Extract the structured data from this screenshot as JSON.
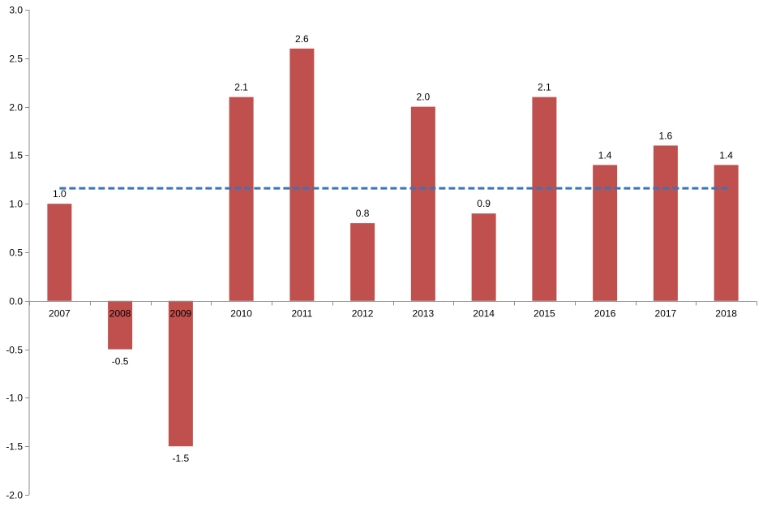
{
  "chart_data": {
    "type": "bar",
    "categories": [
      "2007",
      "2008",
      "2009",
      "2010",
      "2011",
      "2012",
      "2013",
      "2014",
      "2015",
      "2016",
      "2017",
      "2018"
    ],
    "values": [
      1.0,
      -0.5,
      -1.5,
      2.1,
      2.6,
      0.8,
      2.0,
      0.9,
      2.1,
      1.4,
      1.6,
      1.4
    ],
    "value_labels": [
      "1.0",
      "-0.5",
      "-1.5",
      "2.1",
      "2.6",
      "0.8",
      "2.0",
      "0.9",
      "2.1",
      "1.4",
      "1.6",
      "1.4"
    ],
    "average_line": {
      "value": 1.16,
      "style": "dashed",
      "color": "#3a73b8"
    },
    "ylim": [
      -2.0,
      3.0
    ],
    "y_ticks": [
      "3.0",
      "2.5",
      "2.0",
      "1.5",
      "1.0",
      "0.5",
      "0.0",
      "-0.5",
      "-1.0",
      "-1.5",
      "-2.0"
    ],
    "y_tick_values": [
      3.0,
      2.5,
      2.0,
      1.5,
      1.0,
      0.5,
      0.0,
      -0.5,
      -1.0,
      -1.5,
      -2.0
    ],
    "title": "",
    "xlabel": "",
    "ylabel": "",
    "grid": false,
    "legend": "none",
    "bar_color": "#c0504d",
    "axis_color": "#8c8c8c"
  }
}
